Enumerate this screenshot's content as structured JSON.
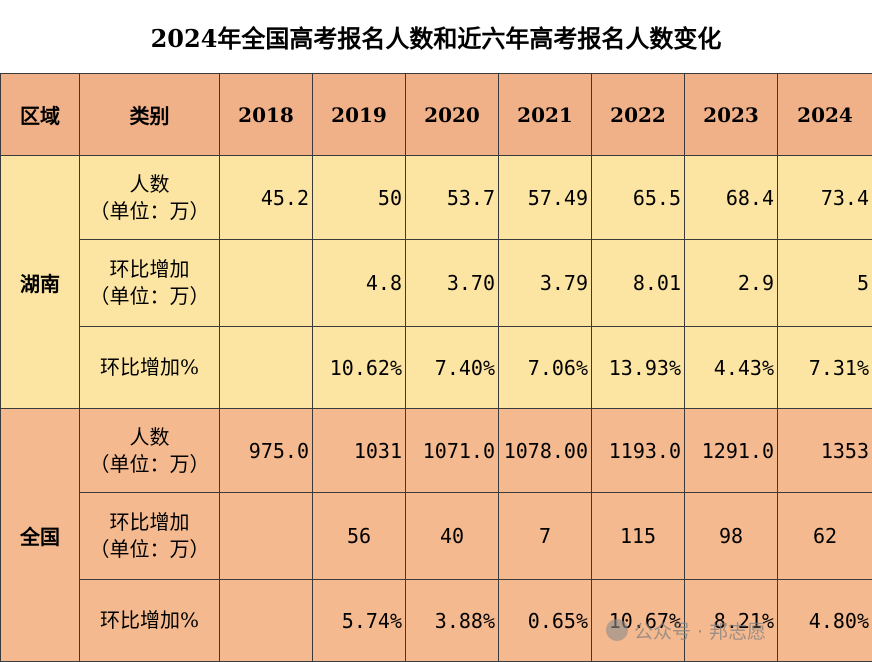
{
  "title": "2024年全国高考报名人数和近六年高考报名人数变化",
  "headers": [
    "区域",
    "类别",
    "2018",
    "2019",
    "2020",
    "2021",
    "2022",
    "2023",
    "2024"
  ],
  "regions": [
    {
      "name": "湖南",
      "rows": [
        {
          "label": [
            "人数",
            "（单位：万）"
          ],
          "values": [
            "45.2",
            "50",
            "53.7",
            "57.49",
            "65.5",
            "68.4",
            "73.4"
          ]
        },
        {
          "label": [
            "环比增加",
            "（单位：万）"
          ],
          "values": [
            "",
            "4.8",
            "3.70",
            "3.79",
            "8.01",
            "2.9",
            "5"
          ]
        },
        {
          "label": [
            "环比增加%"
          ],
          "values": [
            "",
            "10.62%",
            "7.40%",
            "7.06%",
            "13.93%",
            "4.43%",
            "7.31%"
          ]
        }
      ]
    },
    {
      "name": "全国",
      "rows": [
        {
          "label": [
            "人数",
            "（单位：万）"
          ],
          "values": [
            "975.0",
            "1031",
            "1071.0",
            "1078.00",
            "1193.0",
            "1291.0",
            "1353"
          ]
        },
        {
          "label": [
            "环比增加",
            "（单位：万）"
          ],
          "values": [
            "",
            "56",
            "40",
            "7",
            "115",
            "98",
            "62"
          ]
        },
        {
          "label": [
            "环比增加%"
          ],
          "values": [
            "",
            "5.74%",
            "3.88%",
            "0.65%",
            "10.67%",
            "8.21%",
            "4.80%"
          ]
        }
      ]
    }
  ],
  "watermark": "公众号 · 邦志愿",
  "colors": {
    "header": "#f0b088",
    "hunan": "#fce5a3",
    "national": "#f4b98f"
  }
}
